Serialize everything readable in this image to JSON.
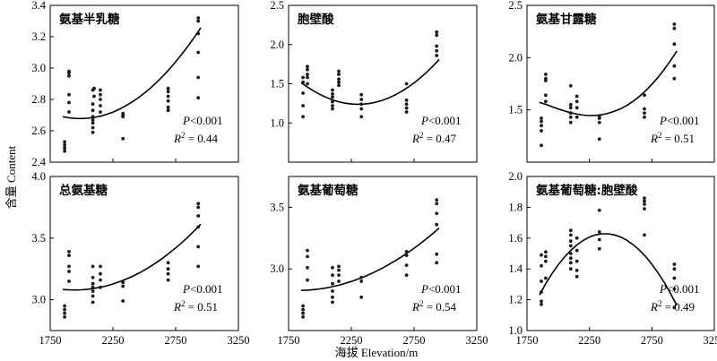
{
  "figure": {
    "ylabel": "含量 Content",
    "xlabel": "海拔 Elevation/m"
  },
  "chart_data": [
    {
      "type": "scatter",
      "title": "氨基半乳糖",
      "stat_p": "P<0.001",
      "stat_r2": "R2 = 0.44",
      "xlim": [
        1750,
        3250
      ],
      "ylim": [
        2.4,
        3.4
      ],
      "xticks": [
        1750,
        2250,
        2750,
        3250
      ],
      "yticks": [
        2.4,
        2.6,
        2.8,
        3.0,
        3.2,
        3.4
      ],
      "ytick_labels": [
        "2.4",
        "2.6",
        "2.8",
        "3.0",
        "3.2",
        "3.4"
      ],
      "x": [
        1865,
        1865,
        1865,
        1865,
        1900,
        1900,
        1900,
        1900,
        1900,
        1900,
        2090,
        2090,
        2090,
        2090,
        2090,
        2090,
        2090,
        2090,
        2100,
        2100,
        2150,
        2150,
        2150,
        2150,
        2150,
        2330,
        2330,
        2330,
        2330,
        2690,
        2690,
        2690,
        2690,
        2690,
        2690,
        2930,
        2930,
        2930,
        2930,
        2930,
        2930
      ],
      "y": [
        2.47,
        2.49,
        2.51,
        2.53,
        2.72,
        2.78,
        2.83,
        2.95,
        2.97,
        2.98,
        2.59,
        2.62,
        2.65,
        2.67,
        2.69,
        2.73,
        2.77,
        2.86,
        2.82,
        2.87,
        2.72,
        2.76,
        2.8,
        2.83,
        2.86,
        2.55,
        2.69,
        2.7,
        2.71,
        2.73,
        2.75,
        2.79,
        2.82,
        2.85,
        2.87,
        2.81,
        2.94,
        3.1,
        3.22,
        3.3,
        3.32
      ],
      "fit_x": [
        1850,
        1900,
        1950,
        2000,
        2050,
        2100,
        2150,
        2200,
        2250,
        2300,
        2350,
        2400,
        2450,
        2500,
        2550,
        2600,
        2650,
        2700,
        2750,
        2800,
        2850,
        2900,
        2950
      ],
      "fit_y": [
        2.69,
        2.683,
        2.679,
        2.678,
        2.68,
        2.685,
        2.693,
        2.705,
        2.719,
        2.737,
        2.758,
        2.782,
        2.809,
        2.84,
        2.873,
        2.91,
        2.95,
        2.993,
        3.04,
        3.09,
        3.142,
        3.198,
        3.257
      ]
    },
    {
      "type": "scatter",
      "title": "胞壁酸",
      "stat_p": "P<0.001",
      "stat_r2": "R2 = 0.47",
      "xlim": [
        1750,
        3250
      ],
      "ylim": [
        0.5,
        2.5
      ],
      "xticks": [
        1750,
        2250,
        2750,
        3250
      ],
      "yticks": [
        0.5,
        1.0,
        1.5,
        2.0,
        2.5
      ],
      "ytick_labels": [
        "",
        "1.0",
        "1.5",
        "2.0",
        "2.5"
      ],
      "x": [
        1865,
        1865,
        1865,
        1865,
        1865,
        1900,
        1900,
        1900,
        1900,
        1900,
        2100,
        2100,
        2100,
        2100,
        2100,
        2100,
        2150,
        2150,
        2150,
        2150,
        2150,
        2330,
        2330,
        2330,
        2330,
        2330,
        2690,
        2690,
        2690,
        2690,
        2690,
        2930,
        2930,
        2930,
        2930,
        2930
      ],
      "y": [
        1.08,
        1.22,
        1.38,
        1.52,
        1.58,
        1.5,
        1.58,
        1.62,
        1.68,
        1.72,
        1.18,
        1.22,
        1.27,
        1.33,
        1.37,
        1.42,
        1.48,
        1.52,
        1.56,
        1.62,
        1.66,
        1.08,
        1.18,
        1.24,
        1.3,
        1.36,
        1.14,
        1.19,
        1.24,
        1.29,
        1.5,
        1.86,
        1.92,
        1.98,
        2.12,
        2.16
      ],
      "fit_x": [
        1850,
        1900,
        1950,
        2000,
        2050,
        2100,
        2150,
        2200,
        2250,
        2300,
        2350,
        2400,
        2450,
        2500,
        2550,
        2600,
        2650,
        2700,
        2750,
        2800,
        2850,
        2900,
        2950
      ],
      "fit_y": [
        1.513,
        1.458,
        1.408,
        1.364,
        1.326,
        1.294,
        1.27,
        1.252,
        1.242,
        1.238,
        1.241,
        1.25,
        1.267,
        1.29,
        1.321,
        1.358,
        1.402,
        1.453,
        1.51,
        1.575,
        1.646,
        1.725,
        1.81
      ]
    },
    {
      "type": "scatter",
      "title": "氨基甘露糖",
      "stat_p": "P<0.001",
      "stat_r2": "R2 = 0.51",
      "xlim": [
        1750,
        3250
      ],
      "ylim": [
        1.0,
        2.5
      ],
      "xticks": [
        1750,
        2250,
        2750,
        3250
      ],
      "yticks": [
        1.0,
        1.5,
        2.0,
        2.5
      ],
      "ytick_labels": [
        "",
        "1.5",
        "2.0",
        "2.5"
      ],
      "x": [
        1865,
        1865,
        1865,
        1865,
        1865,
        1900,
        1900,
        1900,
        1900,
        1900,
        2100,
        2100,
        2100,
        2100,
        2100,
        2100,
        2150,
        2150,
        2150,
        2150,
        2330,
        2330,
        2330,
        2330,
        2690,
        2690,
        2690,
        2690,
        2930,
        2930,
        2930,
        2930,
        2930
      ],
      "y": [
        1.16,
        1.3,
        1.35,
        1.39,
        1.42,
        1.58,
        1.64,
        1.78,
        1.8,
        1.84,
        1.38,
        1.43,
        1.47,
        1.52,
        1.55,
        1.73,
        1.43,
        1.52,
        1.58,
        1.63,
        1.22,
        1.38,
        1.42,
        1.44,
        1.43,
        1.47,
        1.51,
        1.64,
        1.8,
        1.92,
        2.13,
        2.28,
        2.32
      ],
      "fit_x": [
        1850,
        1900,
        1950,
        2000,
        2050,
        2100,
        2150,
        2200,
        2250,
        2300,
        2350,
        2400,
        2450,
        2500,
        2550,
        2600,
        2650,
        2700,
        2750,
        2800,
        2850,
        2900,
        2950
      ],
      "fit_y": [
        1.572,
        1.553,
        1.531,
        1.509,
        1.49,
        1.473,
        1.459,
        1.45,
        1.446,
        1.447,
        1.454,
        1.467,
        1.486,
        1.511,
        1.543,
        1.582,
        1.629,
        1.683,
        1.744,
        1.813,
        1.889,
        1.972,
        2.063
      ]
    },
    {
      "type": "scatter",
      "title": "总氨基糖",
      "stat_p": "P<0.001",
      "stat_r2": "R2 = 0.51",
      "xlim": [
        1750,
        3250
      ],
      "ylim": [
        2.75,
        4.0
      ],
      "xticks": [
        1750,
        2250,
        2750,
        3250
      ],
      "yticks": [
        3.0,
        3.5,
        4.0
      ],
      "ytick_labels": [
        "3.0",
        "3.5",
        "4.0"
      ],
      "x": [
        1865,
        1865,
        1865,
        1865,
        1900,
        1900,
        1900,
        1900,
        1900,
        2090,
        2090,
        2090,
        2090,
        2090,
        2090,
        2090,
        2150,
        2150,
        2150,
        2150,
        2330,
        2330,
        2330,
        2690,
        2690,
        2690,
        2690,
        2930,
        2930,
        2930,
        2930,
        2930,
        2930
      ],
      "y": [
        2.86,
        2.89,
        2.92,
        2.95,
        3.15,
        3.23,
        3.27,
        3.36,
        3.39,
        2.98,
        3.03,
        3.07,
        3.1,
        3.13,
        3.18,
        3.27,
        3.1,
        3.16,
        3.21,
        3.27,
        2.99,
        3.11,
        3.14,
        3.16,
        3.21,
        3.25,
        3.3,
        3.27,
        3.43,
        3.59,
        3.68,
        3.75,
        3.78
      ],
      "fit_x": [
        1850,
        1900,
        1950,
        2000,
        2050,
        2100,
        2150,
        2200,
        2250,
        2300,
        2350,
        2400,
        2450,
        2500,
        2550,
        2600,
        2650,
        2700,
        2750,
        2800,
        2850,
        2900,
        2950
      ],
      "fit_y": [
        3.083,
        3.08,
        3.079,
        3.081,
        3.085,
        3.092,
        3.101,
        3.113,
        3.128,
        3.145,
        3.165,
        3.187,
        3.212,
        3.24,
        3.271,
        3.304,
        3.34,
        3.379,
        3.42,
        3.464,
        3.511,
        3.561,
        3.613
      ]
    },
    {
      "type": "scatter",
      "title": "氨基葡萄糖",
      "stat_p": "P<0.001",
      "stat_r2": "R2 = 0.54",
      "xlim": [
        1750,
        3250
      ],
      "ylim": [
        2.5,
        3.75
      ],
      "xticks": [
        1750,
        2250,
        2750,
        3250
      ],
      "yticks": [
        3.0,
        3.5
      ],
      "ytick_labels": [
        "3.0",
        "3.5"
      ],
      "x": [
        1865,
        1865,
        1865,
        1865,
        1900,
        1900,
        1900,
        1900,
        2100,
        2100,
        2100,
        2100,
        2100,
        2100,
        2150,
        2150,
        2150,
        2150,
        2330,
        2330,
        2330,
        2690,
        2690,
        2690,
        2690,
        2930,
        2930,
        2930,
        2930,
        2930,
        2930
      ],
      "y": [
        2.61,
        2.64,
        2.67,
        2.7,
        2.91,
        3.01,
        3.1,
        3.15,
        2.73,
        2.77,
        2.82,
        2.88,
        2.95,
        3.01,
        2.9,
        2.95,
        2.99,
        3.02,
        2.77,
        2.9,
        2.93,
        2.95,
        3.03,
        3.11,
        3.14,
        3.05,
        3.12,
        3.36,
        3.45,
        3.53,
        3.56
      ],
      "fit_x": [
        1850,
        1900,
        1950,
        2000,
        2050,
        2100,
        2150,
        2200,
        2250,
        2300,
        2350,
        2400,
        2450,
        2500,
        2550,
        2600,
        2650,
        2700,
        2750,
        2800,
        2850,
        2900,
        2950
      ],
      "fit_y": [
        2.826,
        2.828,
        2.832,
        2.838,
        2.846,
        2.856,
        2.868,
        2.882,
        2.898,
        2.916,
        2.936,
        2.958,
        2.982,
        3.008,
        3.036,
        3.066,
        3.098,
        3.132,
        3.168,
        3.206,
        3.246,
        3.288,
        3.332
      ]
    },
    {
      "type": "scatter",
      "title": "氨基葡萄糖:胞壁酸",
      "stat_p": "P<0.001",
      "stat_r2": "R2 = 0.49",
      "xlim": [
        1750,
        3250
      ],
      "ylim": [
        1.0,
        2.0
      ],
      "xticks": [
        1750,
        2250,
        2750,
        3250
      ],
      "yticks": [
        1.0,
        1.2,
        1.4,
        1.6,
        1.8,
        2.0
      ],
      "ytick_labels": [
        "1.0",
        "1.2",
        "1.4",
        "1.6",
        "1.8",
        "2.0"
      ],
      "x": [
        1865,
        1865,
        1865,
        1865,
        1865,
        1865,
        1900,
        1900,
        1900,
        1900,
        2100,
        2100,
        2100,
        2100,
        2100,
        2100,
        2100,
        2100,
        2150,
        2150,
        2150,
        2150,
        2150,
        2330,
        2330,
        2330,
        2330,
        2690,
        2690,
        2690,
        2690,
        2690,
        2930,
        2930,
        2930,
        2930,
        2930
      ],
      "y": [
        1.17,
        1.19,
        1.25,
        1.32,
        1.42,
        1.49,
        1.34,
        1.45,
        1.48,
        1.51,
        1.4,
        1.44,
        1.47,
        1.5,
        1.55,
        1.58,
        1.62,
        1.65,
        1.35,
        1.39,
        1.45,
        1.52,
        1.6,
        1.53,
        1.59,
        1.64,
        1.78,
        1.62,
        1.79,
        1.82,
        1.84,
        1.86,
        1.15,
        1.27,
        1.34,
        1.4,
        1.43
      ],
      "fit_x": [
        1850,
        1900,
        1950,
        2000,
        2050,
        2100,
        2150,
        2200,
        2250,
        2300,
        2350,
        2400,
        2450,
        2500,
        2550,
        2600,
        2650,
        2700,
        2750,
        2800,
        2850,
        2900,
        2950
      ],
      "fit_y": [
        1.231,
        1.304,
        1.369,
        1.427,
        1.477,
        1.52,
        1.556,
        1.585,
        1.607,
        1.621,
        1.628,
        1.628,
        1.621,
        1.607,
        1.586,
        1.557,
        1.522,
        1.48,
        1.43,
        1.374,
        1.311,
        1.24,
        1.163
      ]
    }
  ]
}
